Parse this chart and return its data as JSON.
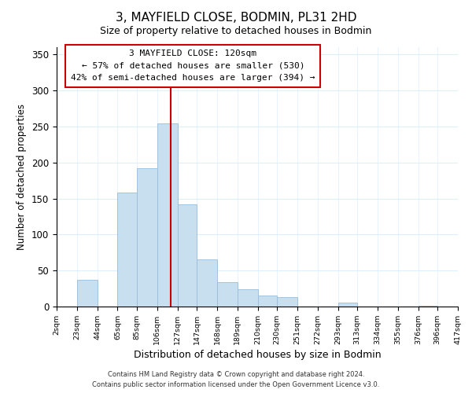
{
  "title": "3, MAYFIELD CLOSE, BODMIN, PL31 2HD",
  "subtitle": "Size of property relative to detached houses in Bodmin",
  "xlabel": "Distribution of detached houses by size in Bodmin",
  "ylabel": "Number of detached properties",
  "bar_color": "#c8dff0",
  "bar_edge_color": "#9abcd8",
  "vline_x": 120,
  "vline_color": "#cc0000",
  "annotation_title": "3 MAYFIELD CLOSE: 120sqm",
  "annotation_line1": "← 57% of detached houses are smaller (530)",
  "annotation_line2": "42% of semi-detached houses are larger (394) →",
  "bin_edges": [
    2,
    23,
    44,
    65,
    85,
    106,
    127,
    147,
    168,
    189,
    210,
    230,
    251,
    272,
    293,
    313,
    334,
    355,
    376,
    396,
    417
  ],
  "bar_heights": [
    0,
    37,
    0,
    158,
    192,
    254,
    142,
    65,
    34,
    24,
    15,
    13,
    0,
    0,
    5,
    0,
    0,
    0,
    1,
    0
  ],
  "ylim": [
    0,
    360
  ],
  "yticks": [
    0,
    50,
    100,
    150,
    200,
    250,
    300,
    350
  ],
  "footer1": "Contains HM Land Registry data © Crown copyright and database right 2024.",
  "footer2": "Contains public sector information licensed under the Open Government Licence v3.0.",
  "grid_color": "#ddeeff"
}
